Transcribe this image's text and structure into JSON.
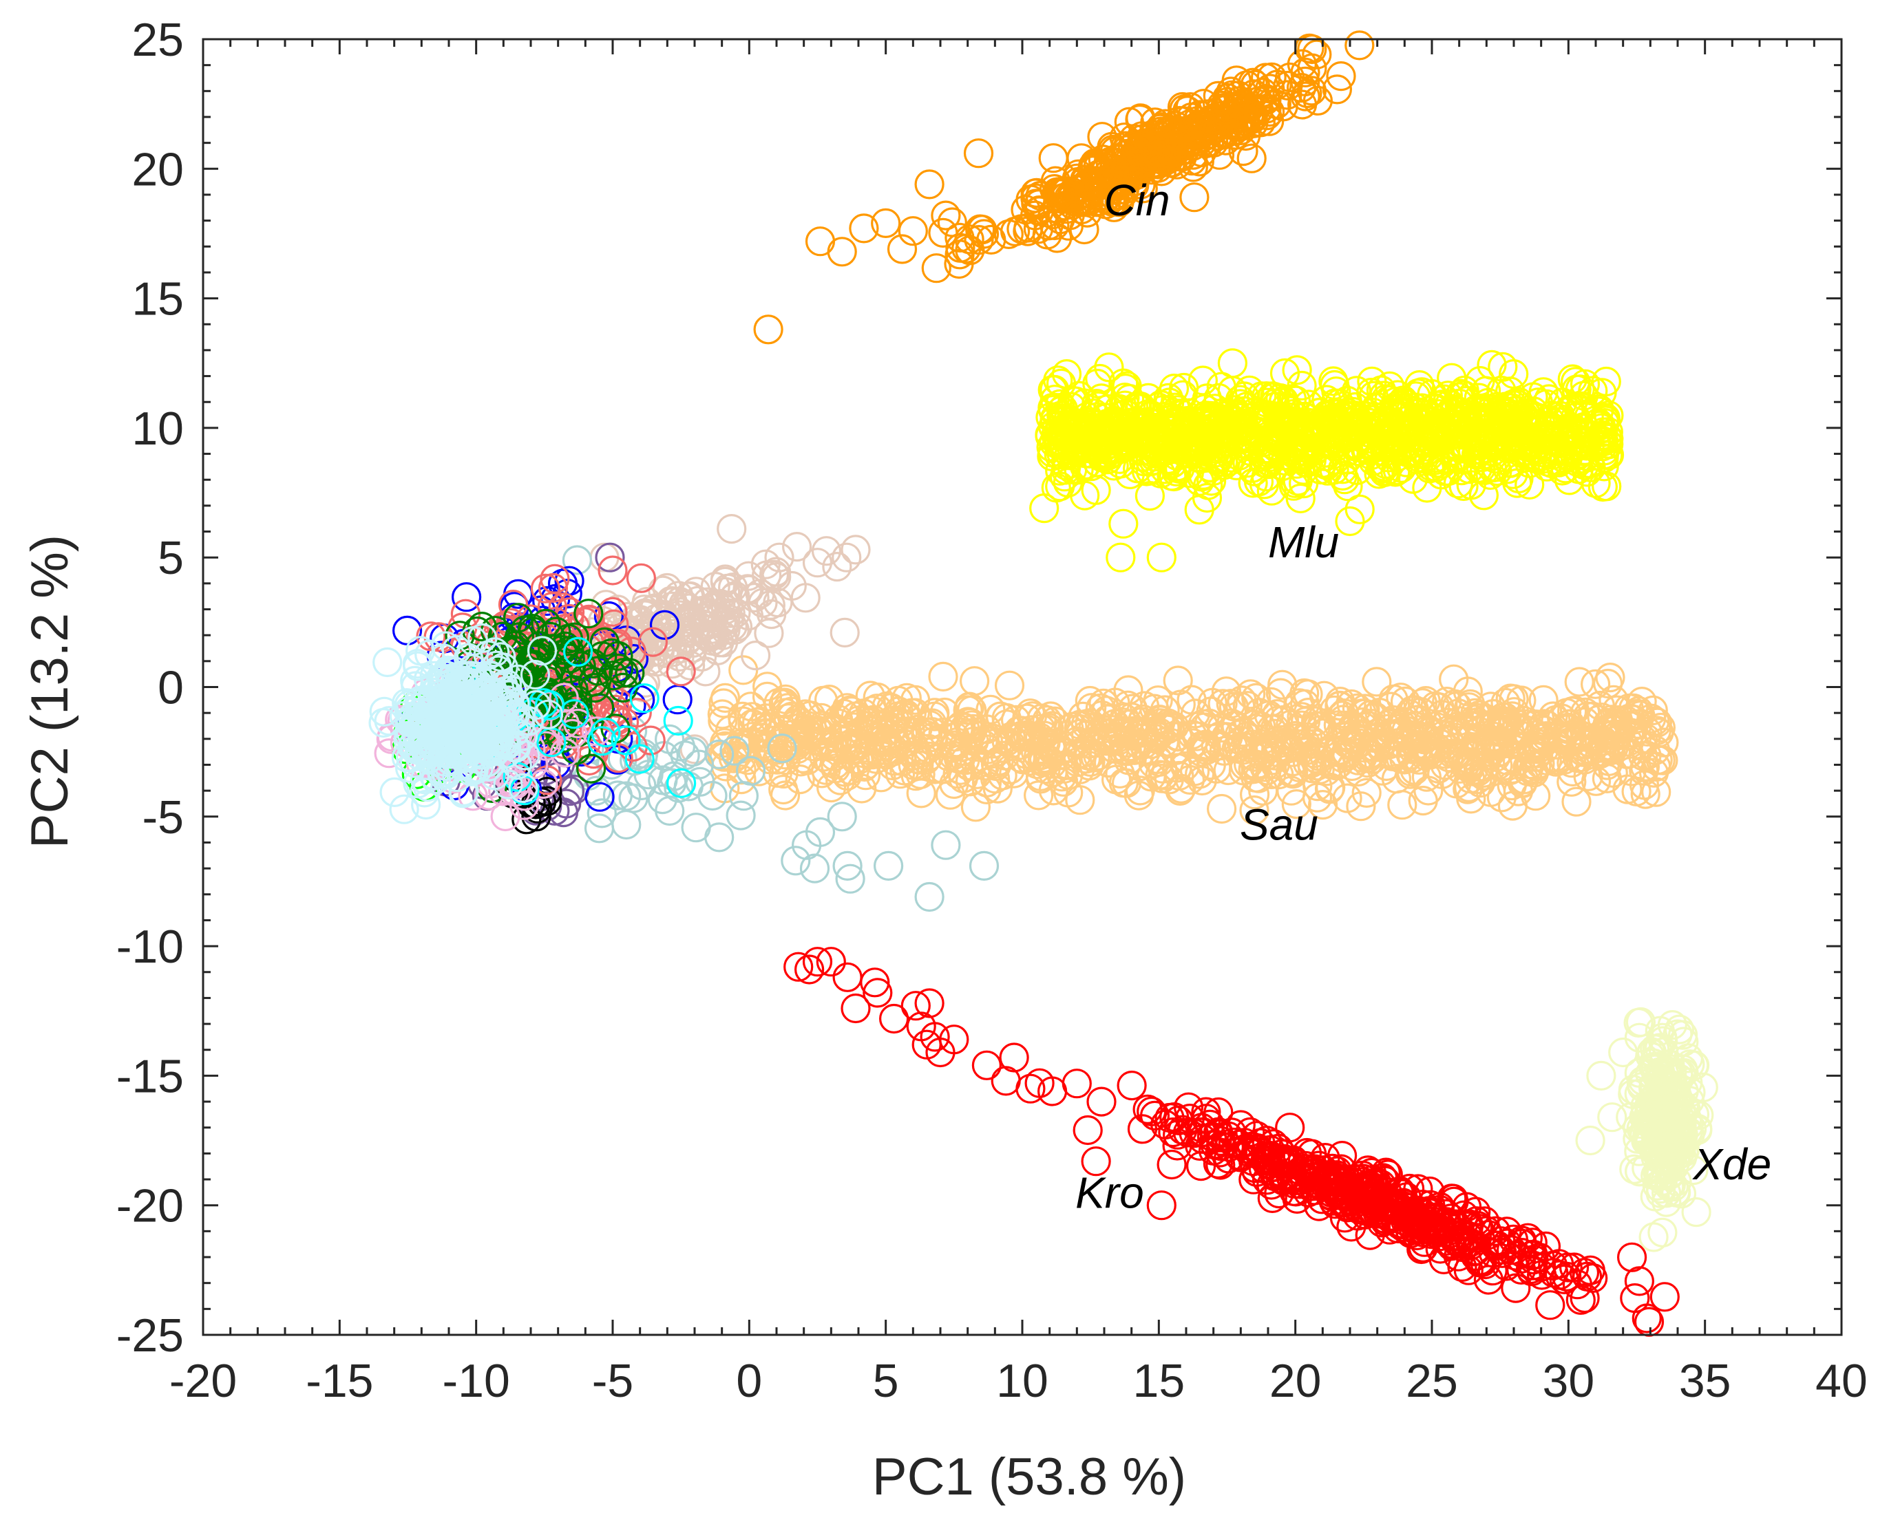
{
  "chart_data": {
    "type": "scatter",
    "title": "",
    "xlabel": "PC1 (53.8 %)",
    "ylabel": "PC2 (13.2 %)",
    "xlim": [
      -20,
      40
    ],
    "ylim": [
      -25,
      25
    ],
    "xticks": [
      -20,
      -15,
      -10,
      -5,
      0,
      5,
      10,
      15,
      20,
      25,
      30,
      35,
      40
    ],
    "yticks": [
      -25,
      -20,
      -15,
      -10,
      -5,
      0,
      5,
      10,
      15,
      20,
      25
    ],
    "xtick_labels": [
      "-20",
      "-15",
      "-10",
      "-5",
      "0",
      "5",
      "10",
      "15",
      "20",
      "25",
      "30",
      "35",
      "40"
    ],
    "ytick_labels": [
      "-25",
      "-20",
      "-15",
      "-10",
      "-5",
      "0",
      "5",
      "10",
      "15",
      "20",
      "25"
    ],
    "grid": false,
    "marker": "open-circle",
    "annotations": [
      {
        "text": "Cin",
        "x": 14.2,
        "y": 18.2
      },
      {
        "text": "Mlu",
        "x": 20.3,
        "y": 5.0
      },
      {
        "text": "Sau",
        "x": 19.4,
        "y": -5.9
      },
      {
        "text": "Kro",
        "x": 13.2,
        "y": -20.1
      },
      {
        "text": "Xde",
        "x": 36.0,
        "y": -19.0
      }
    ],
    "series": [
      {
        "name": "Cin",
        "color": "#ff9900",
        "shape": "elongated",
        "n": 420,
        "cx": 15.0,
        "cy": 20.7,
        "dir": [
          0.885,
          0.465
        ],
        "len_sd": 3.3,
        "wid_sd": 0.55,
        "outliers": [
          [
            0.7,
            13.8
          ],
          [
            2.6,
            17.2
          ],
          [
            3.4,
            16.8
          ],
          [
            4.2,
            17.7
          ],
          [
            5.0,
            17.9
          ],
          [
            5.6,
            16.9
          ],
          [
            6.0,
            17.6
          ],
          [
            6.6,
            19.4
          ],
          [
            7.2,
            18.2
          ],
          [
            11.7,
            17.8
          ],
          [
            18.4,
            20.4
          ],
          [
            16.3,
            18.9
          ],
          [
            8.4,
            20.6
          ]
        ]
      },
      {
        "name": "Mlu",
        "color": "#ffff00",
        "shape": "band",
        "n": 1100,
        "x0": 11.0,
        "x1": 31.5,
        "cy": 9.8,
        "sd_y": 0.9,
        "outliers": [
          [
            13.6,
            5.0
          ],
          [
            15.1,
            5.0
          ],
          [
            13.7,
            6.3
          ],
          [
            22.0,
            6.4
          ],
          [
            10.8,
            6.9
          ],
          [
            12.7,
            7.6
          ],
          [
            17.7,
            12.5
          ],
          [
            26.9,
            7.4
          ]
        ]
      },
      {
        "name": "Sau",
        "color": "#ffcc80",
        "shape": "band",
        "n": 1050,
        "x0": -1.0,
        "x1": 33.5,
        "cy": -2.1,
        "sd_y": 0.9,
        "outliers": [
          [
            6.3,
            -4.1
          ],
          [
            17.3,
            -4.7
          ],
          [
            22.4,
            -4.6
          ],
          [
            28.8,
            -4.2
          ],
          [
            33.1,
            -0.9
          ],
          [
            7.1,
            0.4
          ],
          [
            13.4,
            -0.6
          ],
          [
            25.8,
            0.3
          ],
          [
            30.4,
            0.2
          ]
        ]
      },
      {
        "name": "Kro",
        "color": "#ff0000",
        "shape": "elongated",
        "n": 430,
        "cx": 22.8,
        "cy": -19.8,
        "dir": [
          0.925,
          -0.38
        ],
        "len_sd": 4.0,
        "wid_sd": 0.5,
        "outliers": [
          [
            1.8,
            -10.8
          ],
          [
            2.2,
            -10.9
          ],
          [
            2.5,
            -10.6
          ],
          [
            3.0,
            -10.6
          ],
          [
            3.6,
            -11.2
          ],
          [
            3.9,
            -12.4
          ],
          [
            4.6,
            -11.4
          ],
          [
            4.7,
            -11.8
          ],
          [
            5.3,
            -12.8
          ],
          [
            6.1,
            -12.3
          ],
          [
            6.3,
            -13.1
          ],
          [
            6.6,
            -12.2
          ],
          [
            6.5,
            -13.8
          ],
          [
            6.8,
            -13.5
          ],
          [
            7.0,
            -14.1
          ],
          [
            7.5,
            -13.6
          ],
          [
            8.7,
            -14.6
          ],
          [
            9.4,
            -15.2
          ],
          [
            9.7,
            -14.3
          ],
          [
            10.3,
            -15.5
          ],
          [
            11.1,
            -15.6
          ],
          [
            12.0,
            -15.3
          ],
          [
            12.9,
            -16.0
          ],
          [
            12.4,
            -17.1
          ],
          [
            12.7,
            -18.3
          ],
          [
            15.1,
            -20.0
          ],
          [
            18.0,
            -16.9
          ],
          [
            19.8,
            -17.0
          ]
        ]
      },
      {
        "name": "Xde",
        "color": "#f2f9bf",
        "shape": "blob",
        "n": 260,
        "cx": 33.6,
        "cy": -16.6,
        "sd_x": 0.55,
        "sd_y": 1.4,
        "outliers": [
          [
            30.8,
            -17.5
          ],
          [
            31.2,
            -15.0
          ],
          [
            32.0,
            -14.1
          ],
          [
            34.0,
            -13.4
          ],
          [
            34.6,
            -14.6
          ],
          [
            31.6,
            -16.6
          ]
        ]
      },
      {
        "name": "beige",
        "color": "#e6cbbb",
        "shape": "elongated",
        "n": 230,
        "cx": -3.0,
        "cy": 2.2,
        "dir": [
          0.93,
          0.36
        ],
        "len_sd": 2.6,
        "wid_sd": 0.75,
        "outliers": [
          [
            3.5,
            2.1
          ],
          [
            2.5,
            4.8
          ],
          [
            3.9,
            5.3
          ],
          [
            1.1,
            5.0
          ],
          [
            -2.0,
            -2.4
          ],
          [
            -1.6,
            0.6
          ],
          [
            -5.3,
            5.0
          ]
        ]
      },
      {
        "name": "lightblue",
        "color": "#aad3d3",
        "shape": "blob",
        "n": 40,
        "cx": -3.6,
        "cy": -3.6,
        "sd_x": 1.6,
        "sd_y": 0.9,
        "outliers": [
          [
            -1.1,
            -5.8
          ],
          [
            -0.2,
            -4.2
          ],
          [
            1.7,
            -6.7
          ],
          [
            2.1,
            -6.1
          ],
          [
            2.4,
            -7.0
          ],
          [
            2.6,
            -5.6
          ],
          [
            3.4,
            -5.0
          ],
          [
            3.6,
            -6.9
          ],
          [
            3.7,
            -7.4
          ],
          [
            5.1,
            -6.9
          ],
          [
            6.6,
            -8.1
          ],
          [
            7.2,
            -6.1
          ],
          [
            8.6,
            -6.9
          ],
          [
            -1.1,
            -2.6
          ],
          [
            -6.3,
            4.9
          ]
        ]
      },
      {
        "name": "purple",
        "color": "#7a5a9e",
        "shape": "blob",
        "n": 25,
        "cx": -8.3,
        "cy": -3.2,
        "sd_x": 1.3,
        "sd_y": 0.9,
        "outliers": [
          [
            -7.4,
            -4.6
          ],
          [
            -6.7,
            -4.5
          ],
          [
            -9.6,
            -4.2
          ],
          [
            -5.1,
            5.0
          ]
        ]
      },
      {
        "name": "black",
        "color": "#000000",
        "shape": "blob",
        "n": 10,
        "cx": -8.0,
        "cy": -4.0,
        "sd_x": 0.5,
        "sd_y": 0.4,
        "outliers": [
          [
            -7.8,
            -5.0
          ],
          [
            -7.4,
            -4.4
          ]
        ]
      },
      {
        "name": "blue",
        "color": "#0000ff",
        "shape": "blob",
        "n": 70,
        "cx": -7.9,
        "cy": -0.2,
        "sd_x": 2.2,
        "sd_y": 1.9,
        "outliers": [
          [
            -4.0,
            -0.5
          ],
          [
            -4.5,
            1.8
          ],
          [
            -4.8,
            -2.0
          ],
          [
            -7.1,
            3.4
          ],
          [
            -8.6,
            3.1
          ],
          [
            -10.8,
            -3.8
          ]
        ]
      },
      {
        "name": "salmon",
        "color": "#f46a6a",
        "shape": "blob",
        "n": 170,
        "cx": -7.2,
        "cy": 0.4,
        "sd_x": 1.6,
        "sd_y": 1.6,
        "outliers": [
          [
            -2.5,
            0.6
          ],
          [
            -5.0,
            4.5
          ],
          [
            -5.0,
            2.9
          ],
          [
            -10.5,
            2.3
          ],
          [
            -6.8,
            -2.2
          ]
        ]
      },
      {
        "name": "darkgreen",
        "color": "#008000",
        "shape": "blob",
        "n": 130,
        "cx": -7.8,
        "cy": 0.2,
        "sd_x": 1.3,
        "sd_y": 1.4,
        "outliers": [
          [
            -4.8,
            1.2
          ],
          [
            -4.9,
            -1.6
          ]
        ]
      },
      {
        "name": "green",
        "color": "#00ff00",
        "shape": "blob",
        "n": 30,
        "cx": -11.6,
        "cy": -1.6,
        "sd_x": 0.6,
        "sd_y": 0.8,
        "outliers": [
          [
            -12.5,
            -1.8
          ]
        ]
      },
      {
        "name": "pink",
        "color": "#f2b3dc",
        "shape": "blob",
        "n": 90,
        "cx": -9.5,
        "cy": -2.0,
        "sd_x": 1.5,
        "sd_y": 1.2,
        "outliers": []
      },
      {
        "name": "cyan",
        "color": "#00ffff",
        "shape": "blob",
        "n": 20,
        "cx": -7.0,
        "cy": -1.5,
        "sd_x": 2.0,
        "sd_y": 1.3,
        "outliers": [
          [
            -2.6,
            -1.3
          ]
        ]
      },
      {
        "name": "lightcyan",
        "color": "#c8f3fb",
        "shape": "blob",
        "n": 360,
        "cx": -10.4,
        "cy": -1.3,
        "sd_x": 1.1,
        "sd_y": 1.2,
        "outliers": []
      }
    ]
  }
}
